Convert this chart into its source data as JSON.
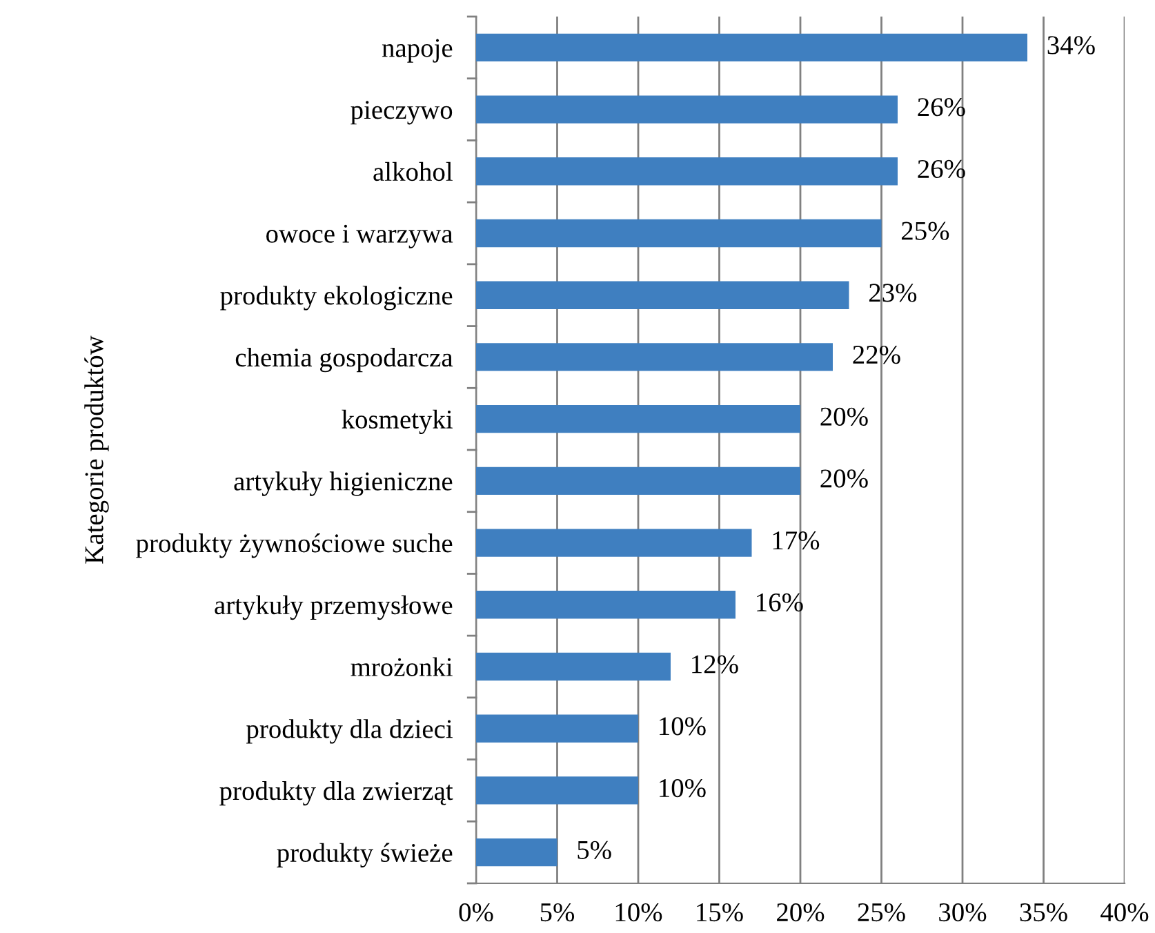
{
  "chart_data": {
    "type": "bar",
    "orientation": "horizontal",
    "ylabel": "Kategorie produktów",
    "categories": [
      "napoje",
      "pieczywo",
      "alkohol",
      "owoce i warzywa",
      "produkty ekologiczne",
      "chemia gospodarcza",
      "kosmetyki",
      "artykuły higieniczne",
      "produkty żywnościowe suche",
      "artykuły przemysłowe",
      "mrożonki",
      "produkty dla dzieci",
      "produkty dla zwierząt",
      "produkty świeże"
    ],
    "values": [
      34,
      26,
      26,
      25,
      23,
      22,
      20,
      20,
      17,
      16,
      12,
      10,
      10,
      5
    ],
    "value_labels": [
      "34%",
      "26%",
      "26%",
      "25%",
      "23%",
      "22%",
      "20%",
      "20%",
      "17%",
      "16%",
      "12%",
      "10%",
      "10%",
      "5%"
    ],
    "color": "#3f7fc0",
    "xlim": [
      0,
      40
    ],
    "xticks": [
      {
        "value": 0,
        "label": "0%"
      },
      {
        "value": 5,
        "label": "5%"
      },
      {
        "value": 10,
        "label": "10%"
      },
      {
        "value": 15,
        "label": "15%"
      },
      {
        "value": 20,
        "label": "20%"
      },
      {
        "value": 25,
        "label": "25%"
      },
      {
        "value": 30,
        "label": "30%"
      },
      {
        "value": 35,
        "label": "35%"
      },
      {
        "value": 40,
        "label": "40%"
      }
    ],
    "grid": "x",
    "legend": false
  }
}
